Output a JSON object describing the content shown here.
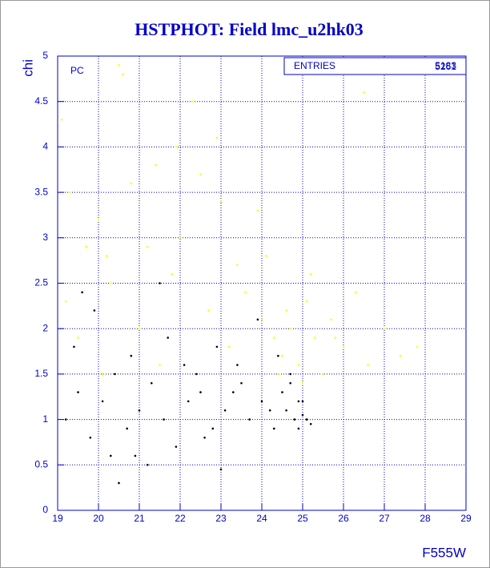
{
  "chart_data": {
    "type": "scatter",
    "title": "HSTPHOT: Field lmc_u2hk03",
    "x_label": "F555W",
    "y_label": "chi",
    "panel_label": "PC",
    "stats_label": "ENTRIES",
    "stats_values": [
      "5183",
      "5261"
    ],
    "xlim": [
      19,
      29
    ],
    "ylim": [
      0,
      5
    ],
    "xticks": [
      19,
      20,
      21,
      22,
      23,
      24,
      25,
      26,
      27,
      28,
      29
    ],
    "yticks": [
      0,
      0.5,
      1,
      1.5,
      2,
      2.5,
      3,
      3.5,
      4,
      4.5,
      5
    ],
    "grid": true,
    "series": [
      {
        "color": "#ffff00",
        "x": [
          19.1,
          19.3,
          19.7,
          20.0,
          20.3,
          20.6,
          21.0,
          21.4,
          21.8,
          22.3,
          22.7,
          23.2,
          23.6,
          24.0,
          24.3,
          24.5,
          24.7,
          24.9,
          25.1,
          25.3,
          25.5,
          25.7,
          26.0,
          26.3,
          26.6,
          27.0,
          27.4,
          27.8,
          19.5,
          20.2,
          20.8,
          21.5,
          22.0,
          22.9,
          23.4,
          23.9,
          24.6,
          25.2,
          25.8,
          26.5,
          19.2,
          20.5,
          21.9,
          23.0,
          24.1,
          25.0,
          20.1,
          21.2,
          22.5,
          24.4
        ],
        "y": [
          4.3,
          3.5,
          2.9,
          3.2,
          2.5,
          4.8,
          2.0,
          3.8,
          2.6,
          4.5,
          2.2,
          1.8,
          2.4,
          2.1,
          1.9,
          1.7,
          2.0,
          1.6,
          2.3,
          1.9,
          1.5,
          2.1,
          1.8,
          2.4,
          1.6,
          2.0,
          1.7,
          1.8,
          1.9,
          2.8,
          3.6,
          1.6,
          3.0,
          4.1,
          2.7,
          3.3,
          2.2,
          2.6,
          1.9,
          4.6,
          2.3,
          4.9,
          4.0,
          3.4,
          2.8,
          1.4,
          1.5,
          2.9,
          3.7,
          1.5
        ]
      },
      {
        "color": "#000000",
        "x": [
          19.2,
          19.5,
          19.8,
          20.1,
          20.4,
          20.7,
          21.0,
          21.3,
          21.6,
          21.9,
          22.2,
          22.5,
          22.8,
          23.1,
          23.4,
          23.7,
          24.0,
          24.3,
          24.5,
          24.6,
          24.7,
          24.8,
          24.9,
          25.0,
          25.1,
          25.2,
          19.4,
          19.9,
          20.3,
          20.8,
          21.2,
          21.7,
          22.1,
          22.6,
          23.0,
          23.5,
          23.9,
          24.4,
          24.9,
          25.0,
          20.5,
          21.5,
          22.4,
          23.3,
          19.6,
          20.9,
          22.9,
          24.2,
          24.7,
          25.1
        ],
        "y": [
          1.0,
          1.3,
          0.8,
          1.2,
          1.5,
          0.9,
          1.1,
          1.4,
          1.0,
          0.7,
          1.2,
          1.3,
          0.9,
          1.1,
          1.6,
          1.0,
          1.2,
          0.9,
          1.3,
          1.1,
          1.5,
          1.0,
          0.9,
          1.2,
          1.0,
          0.95,
          1.8,
          2.2,
          0.6,
          1.7,
          0.5,
          1.9,
          1.6,
          0.8,
          0.45,
          1.4,
          2.1,
          1.7,
          1.2,
          1.05,
          0.3,
          2.5,
          1.5,
          1.3,
          2.4,
          0.6,
          1.8,
          1.1,
          1.4,
          1.0
        ]
      }
    ]
  }
}
